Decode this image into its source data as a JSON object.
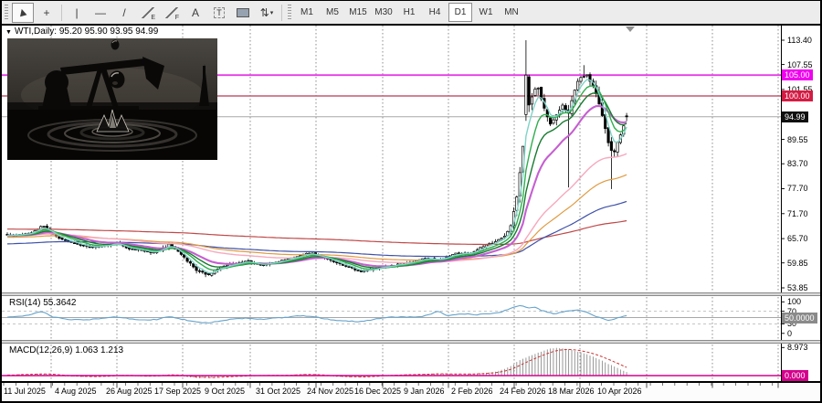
{
  "toolbar": {
    "tools": [
      {
        "name": "cursor",
        "glyph": "▶",
        "selected": true
      },
      {
        "name": "crosshair",
        "glyph": "+",
        "selected": false
      },
      {
        "name": "vertical-line",
        "glyph": "|",
        "selected": false
      },
      {
        "name": "horizontal-line",
        "glyph": "—",
        "selected": false
      },
      {
        "name": "trendline",
        "glyph": "/",
        "selected": false
      },
      {
        "name": "equidistant-channel",
        "glyph": "E",
        "selected": false
      },
      {
        "name": "fibonacci-retracement",
        "glyph": "F",
        "selected": false
      },
      {
        "name": "text",
        "glyph": "A",
        "selected": false
      },
      {
        "name": "text-label",
        "glyph": "T",
        "selected": false
      },
      {
        "name": "shapes",
        "glyph": "",
        "selected": false
      },
      {
        "name": "arrows",
        "glyph": "⇅",
        "selected": false
      }
    ],
    "timeframes": [
      {
        "label": "M1",
        "selected": false
      },
      {
        "label": "M5",
        "selected": false
      },
      {
        "label": "M15",
        "selected": false
      },
      {
        "label": "M30",
        "selected": false
      },
      {
        "label": "H1",
        "selected": false
      },
      {
        "label": "H4",
        "selected": false
      },
      {
        "label": "D1",
        "selected": true
      },
      {
        "label": "W1",
        "selected": false
      },
      {
        "label": "MN",
        "selected": false
      }
    ]
  },
  "chart_data": {
    "type": "candlestick",
    "symbol": "WTI",
    "timeframe": "Daily",
    "title": "WTI,Daily: 95.20 95.90 93.95 94.99",
    "last_candle": {
      "open": 95.2,
      "high": 95.9,
      "low": 93.95,
      "close": 94.99
    },
    "price_axis": {
      "ticks": [
        "113.40",
        "107.55",
        "101.55",
        "89.55",
        "83.70",
        "77.70",
        "71.70",
        "65.70",
        "59.85",
        "53.85"
      ],
      "current_price": "94.99",
      "levels": [
        {
          "value": "105.00",
          "color": "#f000f0"
        },
        {
          "value": "100.00",
          "color": "#d41c44"
        }
      ]
    },
    "time_axis": {
      "labels": [
        "11 Jul 2025",
        "4 Aug 2025",
        "26 Aug 2025",
        "17 Sep 2025",
        "9 Oct 2025",
        "31 Oct 2025",
        "24 Nov 2025",
        "16 Dec 2025",
        "9 Jan 2026",
        "2 Feb 2026",
        "24 Feb 2026",
        "18 Mar 2026",
        "10 Apr 2026"
      ]
    },
    "close_path": [
      [
        8,
        66.4
      ],
      [
        20,
        66.6
      ],
      [
        36,
        67.2
      ],
      [
        47,
        68.8
      ],
      [
        56,
        67.0
      ],
      [
        70,
        65.2
      ],
      [
        85,
        64.3
      ],
      [
        100,
        63.6
      ],
      [
        115,
        64.0
      ],
      [
        128,
        64.6
      ],
      [
        140,
        63.4
      ],
      [
        155,
        62.8
      ],
      [
        170,
        62.2
      ],
      [
        186,
        64.3
      ],
      [
        200,
        61.5
      ],
      [
        215,
        58.2
      ],
      [
        227,
        56.9
      ],
      [
        240,
        58.6
      ],
      [
        255,
        59.6
      ],
      [
        270,
        60.3
      ],
      [
        285,
        59.4
      ],
      [
        300,
        59.9
      ],
      [
        315,
        60.8
      ],
      [
        330,
        61.8
      ],
      [
        340,
        62.3
      ],
      [
        355,
        60.9
      ],
      [
        368,
        59.9
      ],
      [
        382,
        58.9
      ],
      [
        395,
        57.6
      ],
      [
        408,
        58.4
      ],
      [
        425,
        59.1
      ],
      [
        445,
        59.8
      ],
      [
        465,
        60.9
      ],
      [
        482,
        60.6
      ],
      [
        500,
        62.3
      ],
      [
        515,
        62.1
      ],
      [
        532,
        64.1
      ],
      [
        545,
        65.3
      ],
      [
        554,
        66.5
      ],
      [
        560,
        69.5
      ],
      [
        566,
        76.0
      ],
      [
        570,
        83.0
      ],
      [
        574,
        91.0
      ],
      [
        577,
        100.5
      ],
      [
        580,
        97.5
      ],
      [
        584,
        101.0
      ],
      [
        588,
        103.0
      ],
      [
        592,
        99.5
      ],
      [
        597,
        96.0
      ],
      [
        602,
        93.5
      ],
      [
        607,
        94.5
      ],
      [
        612,
        96.5
      ],
      [
        617,
        98.0
      ],
      [
        622,
        95.0
      ],
      [
        627,
        100.0
      ],
      [
        632,
        103.5
      ],
      [
        638,
        104.5
      ],
      [
        643,
        105.2
      ],
      [
        648,
        103.0
      ],
      [
        653,
        100.5
      ],
      [
        658,
        96.5
      ],
      [
        663,
        92.0
      ],
      [
        668,
        87.0
      ],
      [
        672,
        86.0
      ],
      [
        677,
        89.5
      ],
      [
        681,
        91.5
      ],
      [
        686,
        94.99
      ]
    ],
    "volatility_path": [
      [
        8,
        0.9
      ],
      [
        150,
        0.9
      ],
      [
        215,
        1.3
      ],
      [
        300,
        0.8
      ],
      [
        380,
        0.9
      ],
      [
        460,
        0.8
      ],
      [
        530,
        0.9
      ],
      [
        556,
        1.6
      ],
      [
        566,
        3.0
      ],
      [
        578,
        3.4
      ],
      [
        595,
        2.6
      ],
      [
        615,
        2.2
      ],
      [
        635,
        2.0
      ],
      [
        660,
        2.6
      ],
      [
        675,
        2.2
      ],
      [
        686,
        1.2
      ]
    ],
    "candle_overrides": {
      "170": {
        "open": 95.5,
        "close": 105.0,
        "high": 113.4,
        "low": 94.0
      },
      "184": {
        "low": 78.0
      },
      "189": {
        "high": 107.4
      },
      "198": {
        "low": 77.6
      },
      "203": {
        "open": 95.2,
        "high": 95.9,
        "low": 93.95,
        "close": 94.99
      }
    },
    "moving_averages": [
      {
        "period": 380,
        "color": "#c04848",
        "width": 1.2,
        "seed": 68.0
      },
      {
        "period": 160,
        "color": "#3f51a8",
        "width": 1.2,
        "seed": 64.4
      },
      {
        "period": 90,
        "color": "#e09a40",
        "width": 1.2,
        "seed": 66.0
      },
      {
        "period": 60,
        "color": "#f6a9bd",
        "width": 1.4,
        "seed": 66.5
      },
      {
        "period": 21,
        "color": "#c55fd0",
        "width": 2.1,
        "seed": 66.4
      },
      {
        "period": 13,
        "color": "#157a2f",
        "width": 1.4,
        "seed": 66.4
      },
      {
        "period": 8,
        "color": "#2fae4e",
        "width": 1.4,
        "seed": 66.4
      },
      {
        "period": 4,
        "color": "#7fd4c8",
        "width": 1.4,
        "seed": 66.4
      }
    ],
    "rsi": {
      "label": "RSI(14) 55.3642",
      "period": 14,
      "value": 55.3642,
      "ticks": [
        "100",
        "70",
        "30",
        "0"
      ],
      "level_badge": "50.0000",
      "levels": [
        70,
        50,
        30
      ],
      "path": [
        [
          8,
          52
        ],
        [
          30,
          56
        ],
        [
          46,
          70
        ],
        [
          58,
          52
        ],
        [
          75,
          44
        ],
        [
          92,
          42
        ],
        [
          110,
          47
        ],
        [
          126,
          52
        ],
        [
          142,
          46
        ],
        [
          158,
          43
        ],
        [
          172,
          44
        ],
        [
          186,
          54
        ],
        [
          198,
          46
        ],
        [
          213,
          36
        ],
        [
          228,
          33
        ],
        [
          243,
          40
        ],
        [
          258,
          46
        ],
        [
          272,
          48
        ],
        [
          286,
          44
        ],
        [
          300,
          48
        ],
        [
          316,
          52
        ],
        [
          332,
          56
        ],
        [
          345,
          52
        ],
        [
          360,
          44
        ],
        [
          375,
          40
        ],
        [
          392,
          37
        ],
        [
          405,
          42
        ],
        [
          420,
          50
        ],
        [
          435,
          52
        ],
        [
          450,
          52
        ],
        [
          462,
          54
        ],
        [
          472,
          62
        ],
        [
          480,
          70
        ],
        [
          490,
          55
        ],
        [
          500,
          60
        ],
        [
          510,
          62
        ],
        [
          520,
          58
        ],
        [
          532,
          62
        ],
        [
          545,
          64
        ],
        [
          555,
          74
        ],
        [
          562,
          82
        ],
        [
          571,
          88
        ],
        [
          578,
          80
        ],
        [
          585,
          83
        ],
        [
          592,
          74
        ],
        [
          600,
          66
        ],
        [
          607,
          62
        ],
        [
          615,
          68
        ],
        [
          625,
          72
        ],
        [
          633,
          74
        ],
        [
          640,
          70
        ],
        [
          648,
          58
        ],
        [
          655,
          52
        ],
        [
          662,
          44
        ],
        [
          668,
          40
        ],
        [
          673,
          46
        ],
        [
          680,
          52
        ],
        [
          686,
          55.36
        ]
      ]
    },
    "macd": {
      "label": "MACD(12,26,9) 1.063 1.213",
      "value": 1.063,
      "signal": 1.213,
      "ticks": [
        "8.973"
      ],
      "zero_badge": "0.000",
      "path": [
        [
          8,
          0.2
        ],
        [
          45,
          0.7
        ],
        [
          70,
          -0.2
        ],
        [
          100,
          -0.45
        ],
        [
          130,
          0.25
        ],
        [
          160,
          -0.35
        ],
        [
          186,
          0.45
        ],
        [
          215,
          -0.9
        ],
        [
          245,
          -0.35
        ],
        [
          275,
          0.15
        ],
        [
          305,
          0.1
        ],
        [
          336,
          0.5
        ],
        [
          365,
          -0.35
        ],
        [
          395,
          -0.55
        ],
        [
          420,
          0.15
        ],
        [
          450,
          0.35
        ],
        [
          478,
          0.7
        ],
        [
          495,
          0.35
        ],
        [
          515,
          0.55
        ],
        [
          535,
          0.9
        ],
        [
          550,
          1.8
        ],
        [
          560,
          3.2
        ],
        [
          570,
          5.0
        ],
        [
          580,
          6.3
        ],
        [
          590,
          7.4
        ],
        [
          600,
          8.5
        ],
        [
          608,
          8.85
        ],
        [
          615,
          8.8
        ],
        [
          622,
          8.4
        ],
        [
          630,
          7.9
        ],
        [
          638,
          7.3
        ],
        [
          645,
          6.6
        ],
        [
          652,
          5.7
        ],
        [
          658,
          4.9
        ],
        [
          665,
          3.9
        ],
        [
          672,
          2.9
        ],
        [
          678,
          2.1
        ],
        [
          683,
          1.5
        ],
        [
          686,
          1.06
        ]
      ]
    },
    "colors": {
      "grid": "#707070",
      "bull_body": "#ffffff",
      "bear_body": "#000000",
      "candle_outline": "#000000",
      "price_line": "#a8a8a8",
      "level_105": "#e73ce7",
      "level_100": "#c25a72",
      "rsi_line": "#66a3cc",
      "rsi_levels": "#b4b4b4",
      "macd_hist": "#8c8c8c",
      "macd_signal": "#cc3333",
      "macd_zero": "#d4008c",
      "current_badge_bg": "#111111",
      "rsi_badge_bg": "#8a8a8a"
    }
  }
}
